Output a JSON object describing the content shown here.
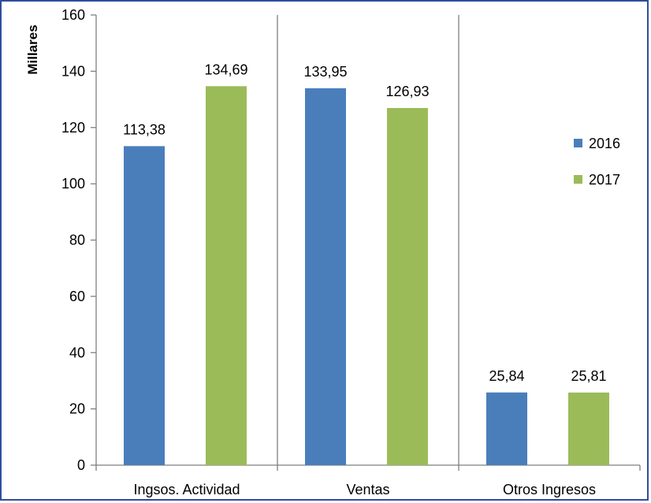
{
  "chart_data": {
    "type": "bar",
    "ylabel": "Millares",
    "xlabel": "",
    "title": "",
    "categories": [
      "Ingsos. Actividad",
      "Ventas",
      "Otros Ingresos"
    ],
    "series": [
      {
        "name": "2016",
        "color": "#4a7ebb",
        "values": [
          113.38,
          133.95,
          25.84
        ],
        "labels": [
          "113,38",
          "133,95",
          "25,84"
        ]
      },
      {
        "name": "2017",
        "color": "#9bbb59",
        "values": [
          134.69,
          126.93,
          25.81
        ],
        "labels": [
          "134,69",
          "126,93",
          "25,81"
        ]
      }
    ],
    "ylim": [
      0,
      160
    ],
    "yticks": [
      0,
      20,
      40,
      60,
      80,
      100,
      120,
      140,
      160
    ],
    "grid": false,
    "category_separators": true,
    "legend_position": "right"
  }
}
